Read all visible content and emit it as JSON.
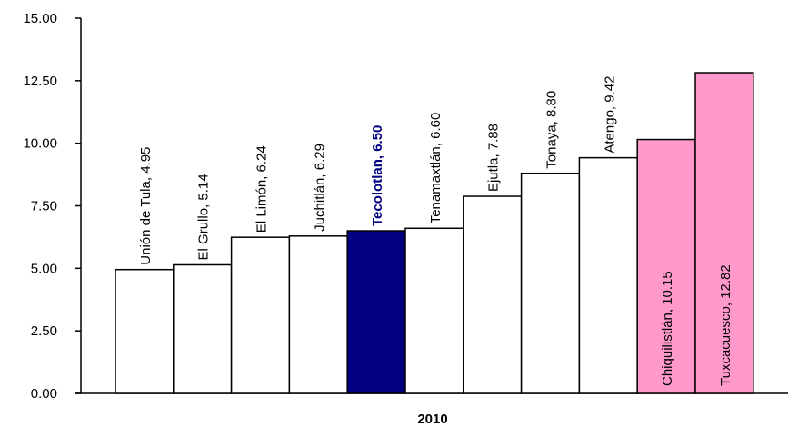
{
  "chart_data": {
    "type": "bar",
    "title": "",
    "xlabel": "2010",
    "ylabel": "",
    "ylim": [
      0,
      15
    ],
    "y_ticks": [
      "0.00",
      "2.50",
      "5.00",
      "7.50",
      "10.00",
      "12.50",
      "15.00"
    ],
    "grid": false,
    "legend": "none",
    "categories": [
      "Unión de Tula",
      "El Grullo",
      "El Limón",
      "Juchitlán",
      "Tecolotlan",
      "Tenamaxtlán",
      "Ejutla",
      "Tonaya",
      "Atengo",
      "Chiquilistlán",
      "Tuxcacuesco"
    ],
    "values": [
      4.95,
      5.14,
      6.24,
      6.29,
      6.5,
      6.6,
      7.88,
      8.8,
      9.42,
      10.15,
      12.82
    ],
    "labels": [
      "Unión de Tula, 4.95",
      "El Grullo, 5.14",
      "El Limón, 6.24",
      "Juchitlán, 6.29",
      "Tecolotlan, 6.50",
      "Tenamaxtlán, 6.60",
      "Ejutla, 7.88",
      "Tonaya, 8.80",
      "Atengo, 9.42",
      "Chiquilistlán, 10.15",
      "Tuxcacuesco, 12.82"
    ],
    "bar_colors": [
      "#ffffff",
      "#ffffff",
      "#ffffff",
      "#ffffff",
      "#000080",
      "#ffffff",
      "#ffffff",
      "#ffffff",
      "#ffffff",
      "#ff99cc",
      "#ff99cc"
    ],
    "highlight_index": 4,
    "highlight_label_color": "#000080",
    "label_inside_indices": [
      9,
      10
    ]
  }
}
